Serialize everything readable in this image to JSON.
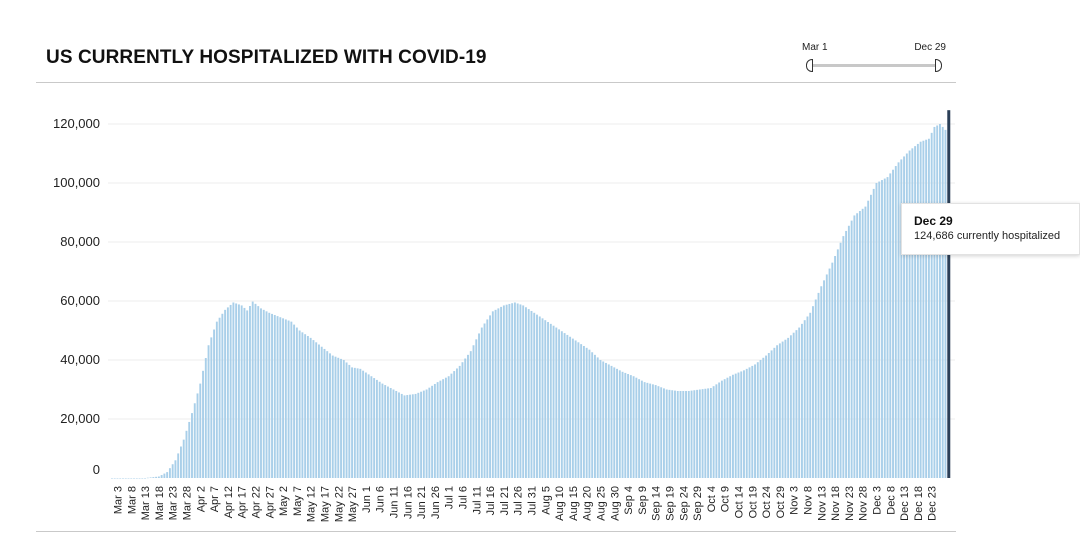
{
  "page": {
    "title": "US CURRENTLY HOSPITALIZED WITH COVID-19"
  },
  "range_slider": {
    "start_label": "Mar 1",
    "end_label": "Dec 29"
  },
  "tooltip": {
    "date": "Dec 29",
    "text": "124,686 currently hospitalized"
  },
  "colors": {
    "bar": "#a9cfe9",
    "highlight_bar": "#2b3f57",
    "axis_text": "#222222"
  },
  "chart_data": {
    "type": "bar",
    "title": "US CURRENTLY HOSPITALIZED WITH COVID-19",
    "xlabel": "",
    "ylabel": "",
    "ylim": [
      0,
      125000
    ],
    "yticks": [
      0,
      20000,
      40000,
      60000,
      80000,
      100000,
      120000
    ],
    "ytick_labels": [
      "0",
      "20,000",
      "40,000",
      "60,000",
      "80,000",
      "100,000",
      "120,000"
    ],
    "grid": true,
    "start_date": "Mar 1",
    "end_date": "Dec 29",
    "tick_labels": [
      "Mar 3",
      "Mar 8",
      "Mar 13",
      "Mar 18",
      "Mar 23",
      "Mar 28",
      "Apr 2",
      "Apr 7",
      "Apr 12",
      "Apr 17",
      "Apr 22",
      "Apr 27",
      "May 2",
      "May 7",
      "May 12",
      "May 17",
      "May 22",
      "May 27",
      "Jun 1",
      "Jun 6",
      "Jun 11",
      "Jun 16",
      "Jun 21",
      "Jun 26",
      "Jul 1",
      "Jul 6",
      "Jul 11",
      "Jul 16",
      "Jul 21",
      "Jul 26",
      "Jul 31",
      "Aug 5",
      "Aug 10",
      "Aug 15",
      "Aug 20",
      "Aug 25",
      "Aug 30",
      "Sep 4",
      "Sep 9",
      "Sep 14",
      "Sep 19",
      "Sep 24",
      "Sep 29",
      "Oct 4",
      "Oct 9",
      "Oct 14",
      "Oct 19",
      "Oct 24",
      "Oct 29",
      "Nov 3",
      "Nov 8",
      "Nov 13",
      "Nov 18",
      "Nov 23",
      "Nov 28",
      "Dec 3",
      "Dec 8",
      "Dec 13",
      "Dec 18",
      "Dec 23"
    ],
    "highlight": {
      "date": "Dec 29",
      "value": 124686
    },
    "anchors": [
      [
        "Mar 1",
        0
      ],
      [
        "Mar 13",
        0
      ],
      [
        "Mar 18",
        500
      ],
      [
        "Mar 21",
        2000
      ],
      [
        "Mar 24",
        6000
      ],
      [
        "Mar 27",
        13000
      ],
      [
        "Mar 30",
        22000
      ],
      [
        "Apr 2",
        32000
      ],
      [
        "Apr 5",
        45000
      ],
      [
        "Apr 8",
        53000
      ],
      [
        "Apr 11",
        57000
      ],
      [
        "Apr 14",
        59500
      ],
      [
        "Apr 17",
        58500
      ],
      [
        "Apr 19",
        56800
      ],
      [
        "Apr 21",
        59800
      ],
      [
        "Apr 24",
        57500
      ],
      [
        "Apr 27",
        56000
      ],
      [
        "May 1",
        54500
      ],
      [
        "May 5",
        53000
      ],
      [
        "May 8",
        50000
      ],
      [
        "May 12",
        47500
      ],
      [
        "May 16",
        44500
      ],
      [
        "May 20",
        41500
      ],
      [
        "May 24",
        40000
      ],
      [
        "May 27",
        37500
      ],
      [
        "May 30",
        37000
      ],
      [
        "Jun 3",
        34500
      ],
      [
        "Jun 7",
        32000
      ],
      [
        "Jun 11",
        30000
      ],
      [
        "Jun 15",
        28000
      ],
      [
        "Jun 19",
        28500
      ],
      [
        "Jun 23",
        30000
      ],
      [
        "Jun 27",
        32500
      ],
      [
        "Jul 1",
        34500
      ],
      [
        "Jul 5",
        38000
      ],
      [
        "Jul 9",
        43000
      ],
      [
        "Jul 13",
        51000
      ],
      [
        "Jul 17",
        56500
      ],
      [
        "Jul 21",
        58500
      ],
      [
        "Jul 25",
        59500
      ],
      [
        "Jul 28",
        58500
      ],
      [
        "Aug 1",
        56000
      ],
      [
        "Aug 5",
        53500
      ],
      [
        "Aug 9",
        51000
      ],
      [
        "Aug 13",
        48500
      ],
      [
        "Aug 17",
        46000
      ],
      [
        "Aug 21",
        43500
      ],
      [
        "Aug 25",
        40000
      ],
      [
        "Aug 29",
        38000
      ],
      [
        "Sep 2",
        36000
      ],
      [
        "Sep 6",
        34500
      ],
      [
        "Sep 10",
        32500
      ],
      [
        "Sep 14",
        31500
      ],
      [
        "Sep 18",
        30000
      ],
      [
        "Sep 22",
        29500
      ],
      [
        "Sep 26",
        29500
      ],
      [
        "Sep 30",
        30000
      ],
      [
        "Oct 4",
        30500
      ],
      [
        "Oct 8",
        33000
      ],
      [
        "Oct 12",
        35000
      ],
      [
        "Oct 16",
        36500
      ],
      [
        "Oct 20",
        38500
      ],
      [
        "Oct 24",
        41500
      ],
      [
        "Oct 28",
        45000
      ],
      [
        "Nov 1",
        47500
      ],
      [
        "Nov 5",
        51000
      ],
      [
        "Nov 9",
        56000
      ],
      [
        "Nov 13",
        65000
      ],
      [
        "Nov 17",
        73000
      ],
      [
        "Nov 21",
        82000
      ],
      [
        "Nov 25",
        89000
      ],
      [
        "Nov 29",
        92000
      ],
      [
        "Dec 3",
        100000
      ],
      [
        "Dec 7",
        102000
      ],
      [
        "Dec 11",
        107000
      ],
      [
        "Dec 15",
        111000
      ],
      [
        "Dec 19",
        114000
      ],
      [
        "Dec 22",
        115000
      ],
      [
        "Dec 24",
        119000
      ],
      [
        "Dec 26",
        120000
      ],
      [
        "Dec 28",
        118000
      ],
      [
        "Dec 29",
        124686
      ]
    ]
  }
}
